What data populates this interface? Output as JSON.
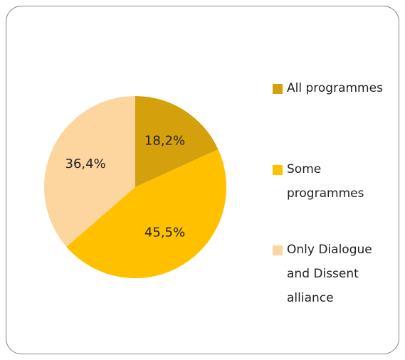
{
  "chart_data": {
    "type": "pie",
    "categories": [
      "All programmes",
      "Some programmes",
      "Only Dialogue and Dissent alliance"
    ],
    "values": [
      18.2,
      45.5,
      36.4
    ],
    "value_labels": [
      "18,2%",
      "45,5%",
      "36,4%"
    ],
    "colors": [
      "#d4a00b",
      "#ffc000",
      "#fcd59f"
    ],
    "legend": "right"
  }
}
